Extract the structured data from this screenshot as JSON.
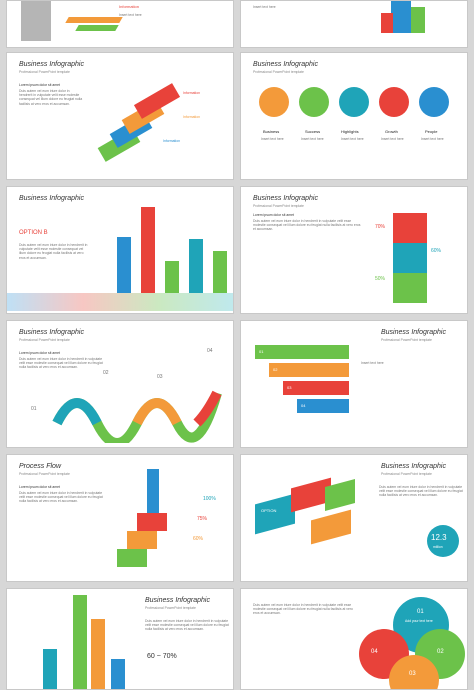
{
  "slides": {
    "header_title": "Business Infographic",
    "header_sub": "Professional PowerPoint template",
    "lorem_heading": "Lorem ipsum dolor sit amet",
    "lorem_text": "Duis autem vel eum iriure dolor in hendrerit in vulputate velit esse molestie consequat vel illum dolore eu feugiat nulla facilisis at vero eros et accumsan.",
    "short_text": "Insert text here",
    "process_title": "Process Flow",
    "information": "Information",
    "option": "OPTION",
    "circle_labels": [
      "Business",
      "Success",
      "Highlights",
      "Growth",
      "People"
    ],
    "pct_75": "75%",
    "pct_60": "60%",
    "pct_70": "70%",
    "pct_50": "50%",
    "pct_100": "100%",
    "pct_60b": "60%",
    "range": "60 ~ 70%",
    "big_value": "12.3",
    "big_unit": "million",
    "steps": [
      "01",
      "02",
      "03",
      "04"
    ],
    "circle_text": "Add your text here",
    "bar_option": "OPTION B"
  },
  "colors": {
    "red": "#e8423a",
    "orange": "#f39a3a",
    "green": "#6cc24a",
    "teal": "#1fa4b8",
    "blue": "#2a8fd0"
  }
}
